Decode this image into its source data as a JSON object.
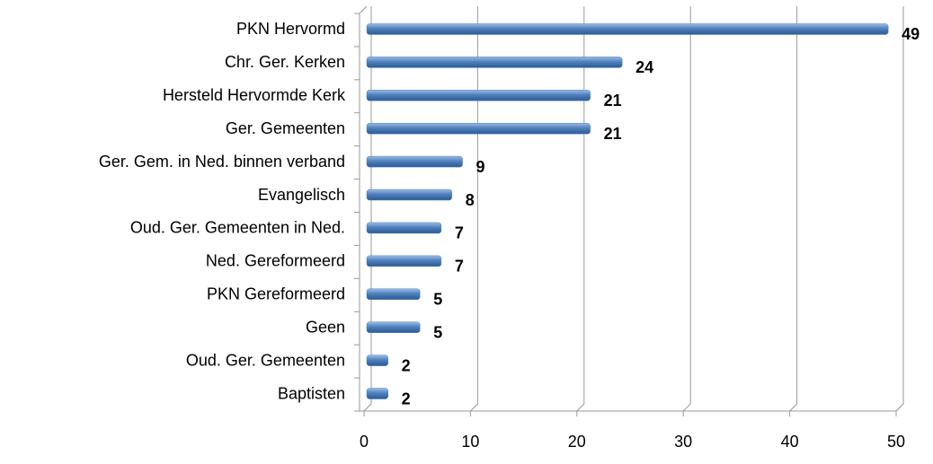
{
  "chart_data": {
    "type": "bar",
    "orientation": "horizontal",
    "categories": [
      "PKN Hervormd",
      "Chr. Ger. Kerken",
      "Hersteld Hervormde Kerk",
      "Ger. Gemeenten",
      "Ger. Gem. in Ned. binnen verband",
      "Evangelisch",
      "Oud. Ger. Gemeenten in Ned.",
      "Ned. Gereformeerd",
      "PKN Gereformeerd",
      "Geen",
      "Oud. Ger. Gemeenten",
      "Baptisten"
    ],
    "values": [
      49,
      24,
      21,
      21,
      9,
      8,
      7,
      7,
      5,
      5,
      2,
      2
    ],
    "color": "#4f81bd",
    "xlim": [
      0,
      50
    ],
    "xticks": [
      0,
      10,
      20,
      30,
      40,
      50
    ],
    "grid": true
  }
}
